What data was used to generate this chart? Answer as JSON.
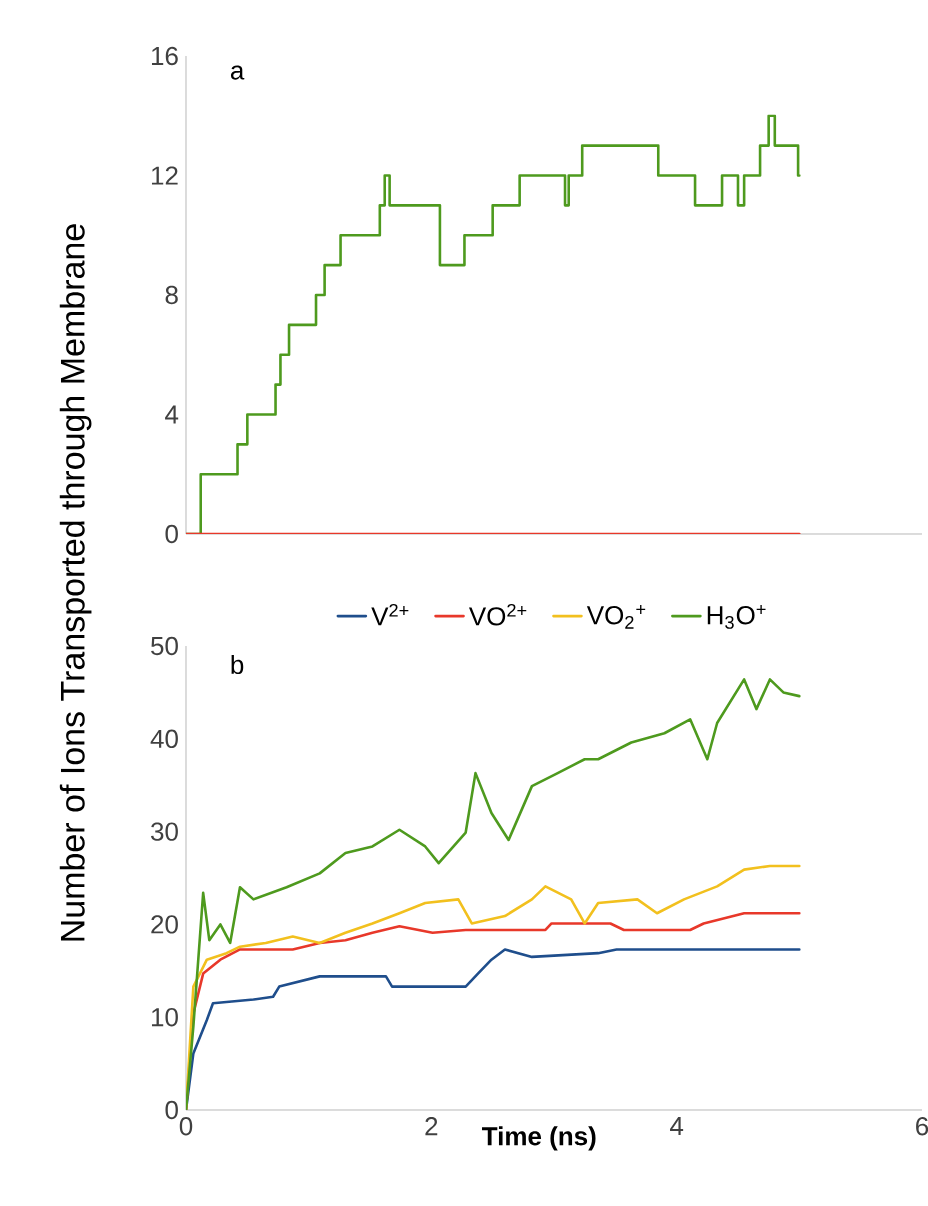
{
  "chart_data": [
    {
      "type": "step",
      "title": "a",
      "xlim": [
        0,
        6
      ],
      "ylim": [
        0,
        16
      ],
      "yticks": [
        0,
        4,
        8,
        12,
        16
      ],
      "tick_labels": "y",
      "grid": false,
      "series": [
        {
          "color": "#4e9a1e",
          "x": [
            0,
            0.12,
            0.42,
            0.5,
            0.73,
            0.77,
            0.84,
            1.06,
            1.13,
            1.26,
            1.35,
            1.58,
            1.62,
            1.66,
            2.07,
            2.1,
            2.27,
            2.5,
            2.72,
            3.09,
            3.12,
            3.23,
            3.85,
            4.15,
            4.37,
            4.5,
            4.55,
            4.68,
            4.75,
            4.8,
            4.99,
            5.0
          ],
          "values": [
            0,
            2,
            3,
            4,
            5,
            6,
            7,
            8,
            9,
            10,
            10,
            11,
            12,
            11,
            9,
            9,
            10,
            11,
            12,
            11,
            12,
            13,
            12,
            11,
            12,
            11,
            12,
            13,
            14,
            13,
            12,
            12
          ]
        },
        {
          "color": "#e8382a",
          "x": [
            0,
            5.0
          ],
          "values": [
            0,
            0
          ]
        }
      ]
    },
    {
      "type": "line",
      "title": "b",
      "xlabel": "Time (ns)",
      "ylabel": "Number of Ions Transported through Membrane",
      "xlim": [
        0,
        6
      ],
      "xticks": [
        0,
        2,
        4,
        6
      ],
      "ylim": [
        0,
        50
      ],
      "yticks": [
        0,
        10,
        20,
        30,
        40,
        50
      ],
      "legend": "top",
      "grid": false,
      "series": [
        {
          "name": "V$^{2+}$",
          "color": "#1f4e8c",
          "x": [
            0,
            0.06,
            0.17,
            0.22,
            0.55,
            0.71,
            0.76,
            1.09,
            1.63,
            1.68,
            2.28,
            2.38,
            2.49,
            2.6,
            2.82,
            3.36,
            3.51,
            5.0
          ],
          "values": [
            0,
            6.1,
            9.7,
            11.5,
            11.9,
            12.2,
            13.3,
            14.4,
            14.4,
            13.3,
            13.3,
            14.7,
            16.2,
            17.3,
            16.5,
            16.9,
            17.3,
            17.3
          ]
        },
        {
          "name": "VO$^{2+}$",
          "color": "#e8382a",
          "x": [
            0,
            0.06,
            0.14,
            0.28,
            0.44,
            0.87,
            1.09,
            1.3,
            1.52,
            1.74,
            2.01,
            2.28,
            2.93,
            2.98,
            3.46,
            3.57,
            4.11,
            4.22,
            4.55,
            5.0
          ],
          "values": [
            0,
            10.4,
            14.7,
            16.2,
            17.3,
            17.3,
            18,
            18.3,
            19.1,
            19.8,
            19.1,
            19.4,
            19.4,
            20.1,
            20.1,
            19.4,
            19.4,
            20.1,
            21.2,
            21.2
          ]
        },
        {
          "name": "VO$_{2}$$^{+}$",
          "color": "#f2c01e",
          "x": [
            0,
            0.06,
            0.17,
            0.33,
            0.44,
            0.65,
            0.87,
            1.09,
            1.3,
            1.52,
            1.74,
            1.95,
            2.22,
            2.33,
            2.6,
            2.82,
            2.93,
            3.14,
            3.25,
            3.36,
            3.68,
            3.84,
            4.06,
            4.33,
            4.55,
            4.76,
            5.0
          ],
          "values": [
            0,
            13.3,
            16.2,
            16.9,
            17.6,
            18,
            18.7,
            18,
            19.1,
            20.1,
            21.2,
            22.3,
            22.7,
            20.1,
            20.9,
            22.7,
            24.1,
            22.7,
            20.1,
            22.3,
            22.7,
            21.2,
            22.7,
            24.1,
            25.9,
            26.3,
            26.3
          ]
        },
        {
          "name": "H$_{3}$O$^{+}$",
          "color": "#4e9a1e",
          "x": [
            0,
            0.06,
            0.14,
            0.19,
            0.28,
            0.36,
            0.44,
            0.55,
            0.82,
            1.09,
            1.3,
            1.52,
            1.74,
            1.95,
            2.06,
            2.28,
            2.36,
            2.49,
            2.63,
            2.82,
            3.03,
            3.25,
            3.36,
            3.63,
            3.9,
            4.11,
            4.25,
            4.33,
            4.55,
            4.65,
            4.76,
            4.87,
            5.0
          ],
          "values": [
            0,
            9,
            23.4,
            18.3,
            20,
            18,
            24,
            22.7,
            24,
            25.5,
            27.7,
            28.4,
            30.2,
            28.4,
            26.6,
            29.9,
            36.3,
            32,
            29.1,
            34.9,
            36.3,
            37.8,
            37.8,
            39.6,
            40.6,
            42.1,
            37.8,
            41.7,
            46.4,
            43.2,
            46.4,
            45,
            44.6
          ]
        }
      ]
    }
  ]
}
